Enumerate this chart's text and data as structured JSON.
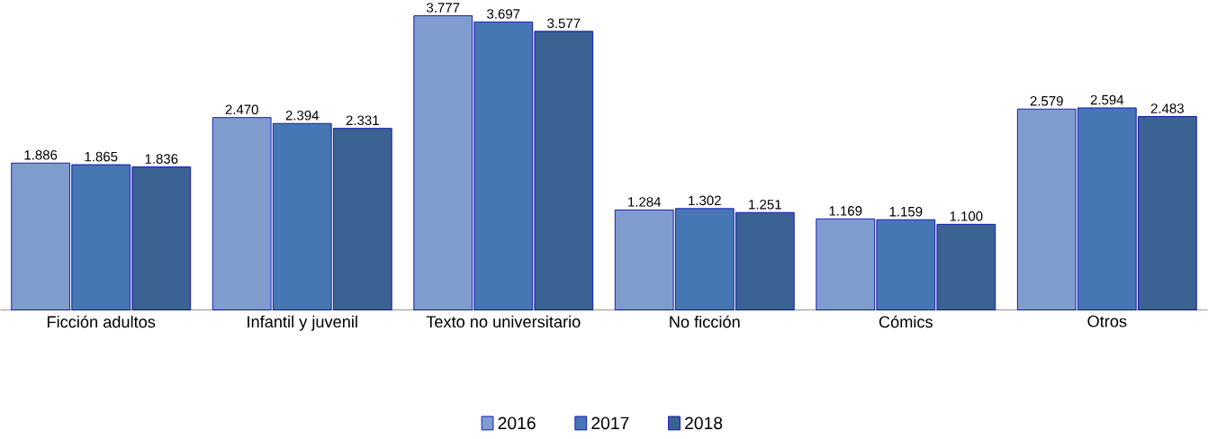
{
  "chart_data": {
    "type": "bar",
    "categories": [
      "Ficción adultos",
      "Infantil y juvenil",
      "Texto no universitario",
      "No ficción",
      "Cómics",
      "Otros"
    ],
    "series": [
      {
        "name": "2016",
        "color": "#7f9cce",
        "values": [
          1886,
          2470,
          3777,
          1284,
          1169,
          2579
        ],
        "value_labels": [
          "1.886",
          "2.470",
          "3.777",
          "1.284",
          "1.169",
          "2.579"
        ]
      },
      {
        "name": "2017",
        "color": "#4677b4",
        "values": [
          1865,
          2394,
          3697,
          1302,
          1159,
          2594
        ],
        "value_labels": [
          "1.865",
          "2.394",
          "3.697",
          "1.302",
          "1.159",
          "2.594"
        ]
      },
      {
        "name": "2018",
        "color": "#3a6293",
        "values": [
          1836,
          2331,
          3577,
          1251,
          1100,
          2483
        ],
        "value_labels": [
          "1.836",
          "2.331",
          "3.577",
          "1.251",
          "1.100",
          "2.483"
        ]
      }
    ],
    "legend": "bottom"
  }
}
